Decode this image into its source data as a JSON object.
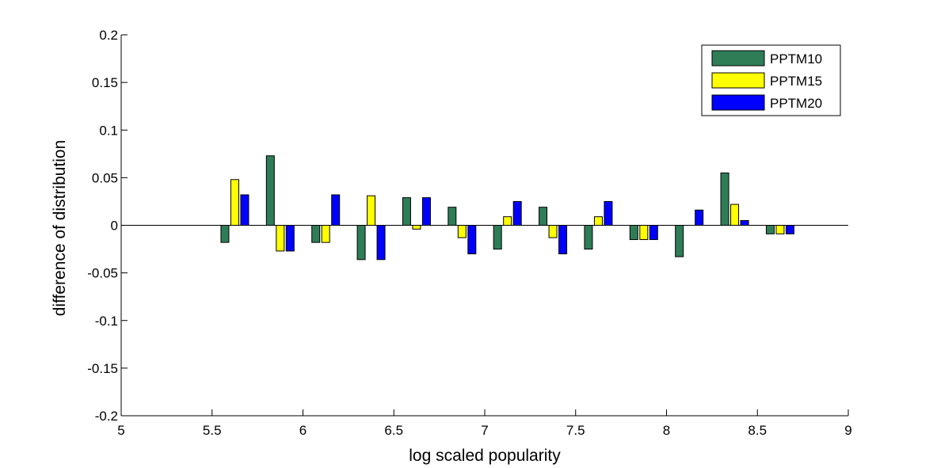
{
  "chart_data": {
    "type": "bar",
    "title": "",
    "xlabel": "log scaled popularity",
    "ylabel": "difference of distribution",
    "xlim": [
      5,
      9
    ],
    "ylim": [
      -0.2,
      0.2
    ],
    "xticks": [
      5,
      5.5,
      6,
      6.5,
      7,
      7.5,
      8,
      8.5,
      9
    ],
    "xtick_labels": [
      "5",
      "5.5",
      "6",
      "6.5",
      "7",
      "7.5",
      "8",
      "8.5",
      "9"
    ],
    "yticks": [
      -0.2,
      -0.15,
      -0.1,
      -0.05,
      0,
      0.05,
      0.1,
      0.15,
      0.2
    ],
    "ytick_labels": [
      "-0.2",
      "-0.15",
      "-0.1",
      "-0.05",
      "0",
      "0.05",
      "0.1",
      "0.15",
      "0.2"
    ],
    "legend_position": "top-right",
    "grid": false,
    "x": [
      5.625,
      5.875,
      6.125,
      6.375,
      6.625,
      6.875,
      7.125,
      7.375,
      7.625,
      7.875,
      8.125,
      8.375,
      8.625
    ],
    "series": [
      {
        "name": "PPTM10",
        "color": "#2e7d57",
        "values": [
          -0.018,
          0.073,
          -0.018,
          -0.036,
          0.029,
          0.019,
          -0.025,
          0.019,
          -0.025,
          -0.015,
          -0.033,
          0.055,
          -0.009
        ]
      },
      {
        "name": "PPTM15",
        "color": "#ffff00",
        "values": [
          0.048,
          -0.027,
          -0.018,
          0.031,
          -0.004,
          -0.013,
          0.009,
          -0.013,
          0.009,
          -0.015,
          0.0,
          0.022,
          -0.009
        ]
      },
      {
        "name": "PPTM20",
        "color": "#0000ff",
        "values": [
          0.032,
          -0.027,
          0.032,
          -0.036,
          0.029,
          -0.03,
          0.025,
          -0.03,
          0.025,
          -0.015,
          0.016,
          0.005,
          -0.009
        ]
      }
    ]
  }
}
